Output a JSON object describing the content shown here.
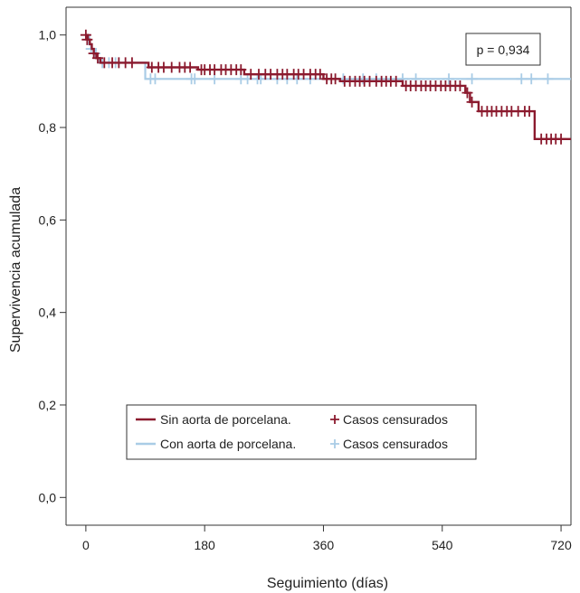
{
  "chart_data": {
    "type": "line",
    "subtype": "kaplan-meier",
    "xlabel": "Seguimiento (días)",
    "ylabel": "Supervivencia acumulada",
    "xlim": [
      -30,
      735
    ],
    "ylim": [
      -0.06,
      1.06
    ],
    "xticks": [
      0,
      180,
      360,
      540,
      720
    ],
    "xtick_labels": [
      "0",
      "180",
      "360",
      "540",
      "720"
    ],
    "yticks": [
      0.0,
      0.2,
      0.4,
      0.6,
      0.8,
      1.0
    ],
    "ytick_labels": [
      "0,0",
      "0,2",
      "0,4",
      "0,6",
      "0,8",
      "1,0"
    ],
    "grid": false,
    "annotation": "p = 0,934",
    "legend": {
      "placement": "bottom-center",
      "entries": [
        {
          "line_label": "Sin aorta de porcelana.",
          "marker_label": "Casos censurados"
        },
        {
          "line_label": "Con aorta de porcelana.",
          "marker_label": "Casos censurados"
        }
      ]
    },
    "series": [
      {
        "name": "Sin aorta de porcelana.",
        "color": "#8b1a2e",
        "steps": [
          [
            0,
            1.0
          ],
          [
            3,
            0.99
          ],
          [
            6,
            0.98
          ],
          [
            9,
            0.97
          ],
          [
            12,
            0.96
          ],
          [
            16,
            0.95
          ],
          [
            22,
            0.94
          ],
          [
            95,
            0.93
          ],
          [
            170,
            0.925
          ],
          [
            240,
            0.915
          ],
          [
            360,
            0.905
          ],
          [
            385,
            0.9
          ],
          [
            480,
            0.89
          ],
          [
            575,
            0.875
          ],
          [
            582,
            0.855
          ],
          [
            595,
            0.835
          ],
          [
            680,
            0.775
          ],
          [
            735,
            0.775
          ]
        ],
        "censored": [
          [
            0,
            1.0
          ],
          [
            2,
            0.99
          ],
          [
            12,
            0.96
          ],
          [
            18,
            0.95
          ],
          [
            28,
            0.94
          ],
          [
            40,
            0.94
          ],
          [
            50,
            0.94
          ],
          [
            60,
            0.94
          ],
          [
            70,
            0.94
          ],
          [
            100,
            0.93
          ],
          [
            110,
            0.93
          ],
          [
            118,
            0.93
          ],
          [
            130,
            0.93
          ],
          [
            142,
            0.93
          ],
          [
            150,
            0.93
          ],
          [
            158,
            0.93
          ],
          [
            175,
            0.925
          ],
          [
            180,
            0.925
          ],
          [
            188,
            0.925
          ],
          [
            195,
            0.925
          ],
          [
            205,
            0.925
          ],
          [
            212,
            0.925
          ],
          [
            220,
            0.925
          ],
          [
            228,
            0.925
          ],
          [
            235,
            0.925
          ],
          [
            250,
            0.915
          ],
          [
            262,
            0.915
          ],
          [
            272,
            0.915
          ],
          [
            280,
            0.915
          ],
          [
            290,
            0.915
          ],
          [
            298,
            0.915
          ],
          [
            305,
            0.915
          ],
          [
            315,
            0.915
          ],
          [
            322,
            0.915
          ],
          [
            330,
            0.915
          ],
          [
            340,
            0.915
          ],
          [
            348,
            0.915
          ],
          [
            355,
            0.915
          ],
          [
            365,
            0.905
          ],
          [
            372,
            0.905
          ],
          [
            378,
            0.905
          ],
          [
            392,
            0.9
          ],
          [
            400,
            0.9
          ],
          [
            408,
            0.9
          ],
          [
            415,
            0.9
          ],
          [
            422,
            0.9
          ],
          [
            430,
            0.9
          ],
          [
            440,
            0.9
          ],
          [
            448,
            0.9
          ],
          [
            455,
            0.9
          ],
          [
            462,
            0.9
          ],
          [
            470,
            0.9
          ],
          [
            485,
            0.89
          ],
          [
            492,
            0.89
          ],
          [
            500,
            0.89
          ],
          [
            508,
            0.89
          ],
          [
            515,
            0.89
          ],
          [
            522,
            0.89
          ],
          [
            530,
            0.89
          ],
          [
            538,
            0.89
          ],
          [
            545,
            0.89
          ],
          [
            552,
            0.89
          ],
          [
            560,
            0.89
          ],
          [
            567,
            0.89
          ],
          [
            578,
            0.875
          ],
          [
            585,
            0.855
          ],
          [
            600,
            0.835
          ],
          [
            608,
            0.835
          ],
          [
            615,
            0.835
          ],
          [
            622,
            0.835
          ],
          [
            630,
            0.835
          ],
          [
            638,
            0.835
          ],
          [
            645,
            0.835
          ],
          [
            655,
            0.835
          ],
          [
            665,
            0.835
          ],
          [
            672,
            0.835
          ],
          [
            690,
            0.775
          ],
          [
            698,
            0.775
          ],
          [
            705,
            0.775
          ],
          [
            712,
            0.775
          ],
          [
            720,
            0.775
          ]
        ]
      },
      {
        "name": "Con aorta de porcelana.",
        "color": "#a9cce6",
        "steps": [
          [
            0,
            1.0
          ],
          [
            5,
            0.98
          ],
          [
            8,
            0.97
          ],
          [
            15,
            0.95
          ],
          [
            20,
            0.94
          ],
          [
            90,
            0.905
          ],
          [
            735,
            0.905
          ]
        ],
        "censored": [
          [
            8,
            0.97
          ],
          [
            14,
            0.96
          ],
          [
            25,
            0.94
          ],
          [
            35,
            0.94
          ],
          [
            45,
            0.94
          ],
          [
            98,
            0.905
          ],
          [
            105,
            0.905
          ],
          [
            160,
            0.905
          ],
          [
            165,
            0.905
          ],
          [
            195,
            0.905
          ],
          [
            235,
            0.905
          ],
          [
            245,
            0.905
          ],
          [
            260,
            0.905
          ],
          [
            265,
            0.905
          ],
          [
            290,
            0.905
          ],
          [
            305,
            0.905
          ],
          [
            320,
            0.905
          ],
          [
            340,
            0.905
          ],
          [
            390,
            0.905
          ],
          [
            420,
            0.905
          ],
          [
            440,
            0.905
          ],
          [
            480,
            0.905
          ],
          [
            500,
            0.905
          ],
          [
            550,
            0.905
          ],
          [
            585,
            0.905
          ],
          [
            660,
            0.905
          ],
          [
            675,
            0.905
          ],
          [
            700,
            0.905
          ]
        ]
      }
    ]
  }
}
